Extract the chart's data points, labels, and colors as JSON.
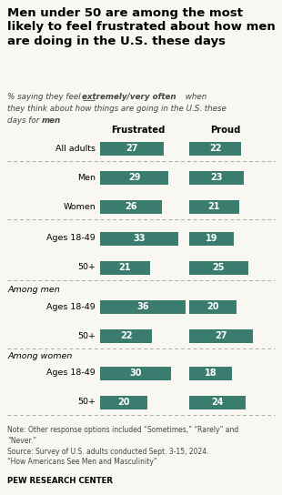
{
  "title": "Men under 50 are among the most\nlikely to feel frustrated about how men\nare doing in the U.S. these days",
  "col1_label": "Frustrated",
  "col2_label": "Proud",
  "bar_color": "#3a7d6e",
  "categories": [
    "All adults",
    "Men",
    "Women",
    "Ages 18-49",
    "50+",
    "Ages 18-49",
    "50+",
    "Ages 18-49",
    "50+"
  ],
  "section_labels": [
    "",
    "",
    "",
    "",
    "",
    "Among men",
    "",
    "Among women",
    ""
  ],
  "frustrated": [
    27,
    29,
    26,
    33,
    21,
    36,
    22,
    30,
    20
  ],
  "proud": [
    22,
    23,
    21,
    19,
    25,
    20,
    27,
    18,
    24
  ],
  "note": "Note: Other response options included “Sometimes,” “Rarely” and\n“Never.”\nSource: Survey of U.S. adults conducted Sept. 3-15, 2024.\n“How Americans See Men and Masculinity”",
  "source_label": "PEW RESEARCH CENTER",
  "background_color": "#f9f7f2",
  "text_color": "#444444"
}
